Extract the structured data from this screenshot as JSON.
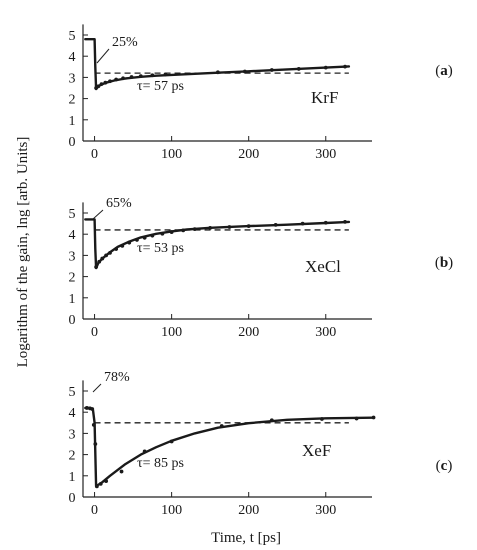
{
  "chart_data": {
    "type": "line",
    "xlabel": "Time, t [ps]",
    "ylabel": "Logarithm of the gain, lng [arb. Units]",
    "x_ticks": [
      "0",
      "100",
      "200",
      "300"
    ],
    "y_ticks": [
      "0",
      "1",
      "2",
      "3",
      "4",
      "5"
    ],
    "xlim": [
      -15,
      360
    ],
    "ylim": [
      0,
      5.5
    ],
    "panels": [
      {
        "label_open": "(",
        "label": "a",
        "label_close": ")",
        "gas": "KrF",
        "percent_annotation": "25%",
        "tau_annotation": "τ= 57 ps",
        "initial_level": 4.8,
        "dip_level": 2.45,
        "dashed_level": 3.2,
        "series": [
          {
            "x": [
              -12,
              0,
              1,
              2,
              4,
              8,
              15,
              25,
              40,
              60,
              80,
              100,
              130,
              160,
              200,
              240,
              280,
              320,
              330
            ],
            "y": [
              4.8,
              4.8,
              3.5,
              2.45,
              2.55,
              2.65,
              2.75,
              2.85,
              2.95,
              3.03,
              3.08,
              3.12,
              3.17,
              3.22,
              3.29,
              3.36,
              3.43,
              3.5,
              3.52
            ]
          }
        ],
        "points": {
          "x": [
            2,
            5,
            9,
            14,
            20,
            28,
            37,
            48,
            60,
            75,
            92,
            160,
            195,
            230,
            265,
            300,
            325
          ],
          "y": [
            2.5,
            2.58,
            2.68,
            2.75,
            2.82,
            2.9,
            2.96,
            3.02,
            3.06,
            3.1,
            3.14,
            3.24,
            3.28,
            3.35,
            3.4,
            3.46,
            3.51
          ]
        }
      },
      {
        "label_open": "(",
        "label": "b",
        "label_close": ")",
        "gas": "XeCl",
        "percent_annotation": "65%",
        "tau_annotation": "τ= 53 ps",
        "initial_level": 4.7,
        "dip_level": 2.4,
        "dashed_level": 4.2,
        "series": [
          {
            "x": [
              -12,
              0,
              1,
              2,
              5,
              10,
              20,
              30,
              45,
              60,
              80,
              100,
              120,
              150,
              200,
              250,
              300,
              330
            ],
            "y": [
              4.7,
              4.7,
              3.3,
              2.4,
              2.65,
              2.85,
              3.15,
              3.4,
              3.65,
              3.85,
              4.02,
              4.13,
              4.22,
              4.3,
              4.38,
              4.45,
              4.53,
              4.58
            ]
          }
        ],
        "points": {
          "x": [
            2,
            6,
            10,
            15,
            20,
            28,
            36,
            45,
            55,
            65,
            75,
            88,
            100,
            115,
            130,
            150,
            175,
            200,
            235,
            270,
            300,
            325
          ],
          "y": [
            2.45,
            2.7,
            2.85,
            3.0,
            3.12,
            3.3,
            3.45,
            3.6,
            3.73,
            3.83,
            3.93,
            4.02,
            4.1,
            4.18,
            4.24,
            4.3,
            4.34,
            4.38,
            4.44,
            4.5,
            4.54,
            4.58
          ]
        }
      },
      {
        "label_open": "(",
        "label": "c",
        "label_close": ")",
        "gas": "XeF",
        "percent_annotation": "78%",
        "tau_annotation": "τ= 85 ps",
        "initial_level": 4.2,
        "dip_level": 0.5,
        "dashed_level": 3.5,
        "series": [
          {
            "x": [
              -12,
              -5,
              -2,
              0,
              2,
              5,
              10,
              20,
              40,
              60,
              80,
              100,
              130,
              160,
              200,
              250,
              300,
              360
            ],
            "y": [
              4.2,
              4.2,
              4.1,
              3.5,
              0.5,
              0.58,
              0.7,
              1.0,
              1.55,
              2.0,
              2.35,
              2.65,
              3.0,
              3.27,
              3.48,
              3.64,
              3.71,
              3.74
            ]
          }
        ],
        "points": {
          "x": [
            -10,
            -6,
            -3,
            -1,
            1,
            3,
            8,
            15,
            35,
            65,
            100,
            165,
            230,
            295,
            340,
            362
          ],
          "y": [
            4.2,
            4.18,
            4.15,
            3.4,
            2.5,
            0.5,
            0.62,
            0.75,
            1.2,
            2.15,
            2.62,
            3.35,
            3.62,
            3.68,
            3.7,
            3.75
          ]
        }
      }
    ]
  }
}
